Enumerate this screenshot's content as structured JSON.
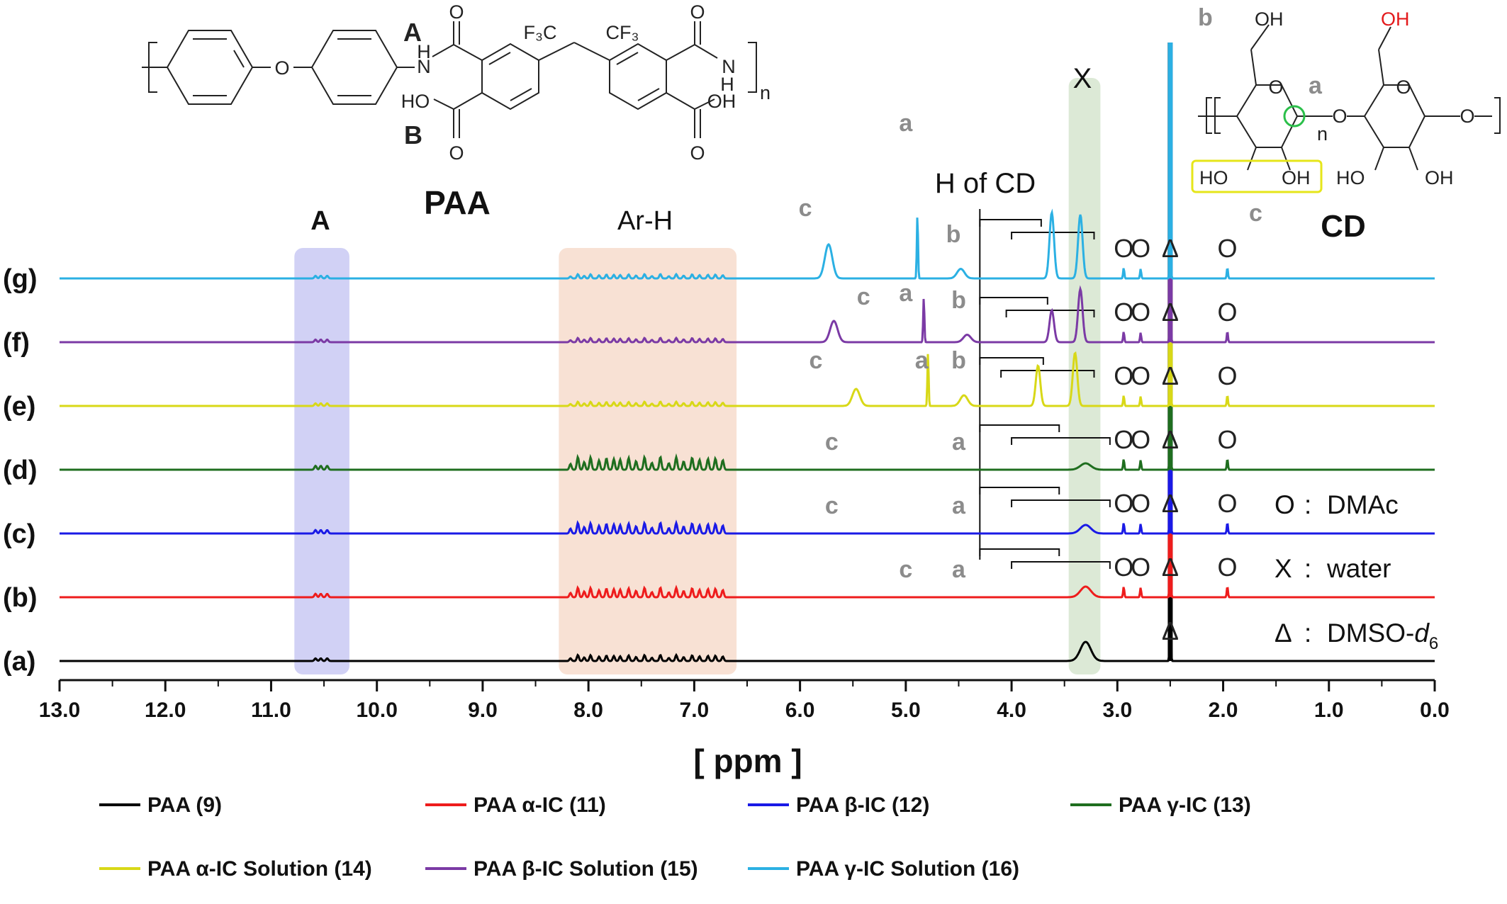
{
  "chart_data": {
    "type": "line",
    "xlabel": "[ ppm ]",
    "xlim": [
      13.0,
      0.0
    ],
    "x_reversed": true,
    "x_ticks": [
      "13.0",
      "12.0",
      "11.0",
      "10.0",
      "9.0",
      "8.0",
      "7.0",
      "6.0",
      "5.0",
      "4.0",
      "3.0",
      "2.0",
      "1.0",
      "0.0"
    ],
    "grid": false,
    "legend_position": "bottom",
    "series": [
      {
        "name": "PAA (9)",
        "row": "(a)",
        "color": "#000000",
        "peaks": [
          {
            "ppm": 10.53,
            "height": 0.12
          },
          {
            "ppm": 7.75,
            "height": 0.28
          },
          {
            "ppm": 3.3,
            "height": 0.9
          },
          {
            "ppm": 2.5,
            "height": 2.5
          }
        ]
      },
      {
        "name": "PAA α-IC (11)",
        "row": "(b)",
        "color": "#ee1c1c",
        "peaks": [
          {
            "ppm": 10.53,
            "height": 0.16
          },
          {
            "ppm": 7.75,
            "height": 0.45
          },
          {
            "ppm": 3.3,
            "height": 0.5
          },
          {
            "ppm": 2.94,
            "height": 0.5
          },
          {
            "ppm": 2.78,
            "height": 0.45
          },
          {
            "ppm": 2.5,
            "height": 2.5
          },
          {
            "ppm": 1.96,
            "height": 0.5
          }
        ]
      },
      {
        "name": "PAA β-IC (12)",
        "row": "(c)",
        "color": "#1a1ae6",
        "peaks": [
          {
            "ppm": 10.53,
            "height": 0.16
          },
          {
            "ppm": 7.75,
            "height": 0.5
          },
          {
            "ppm": 3.3,
            "height": 0.4
          },
          {
            "ppm": 2.94,
            "height": 0.5
          },
          {
            "ppm": 2.78,
            "height": 0.45
          },
          {
            "ppm": 2.5,
            "height": 2.5
          },
          {
            "ppm": 1.96,
            "height": 0.5
          }
        ]
      },
      {
        "name": "PAA γ-IC (13)",
        "row": "(d)",
        "color": "#1f6e1f",
        "peaks": [
          {
            "ppm": 10.53,
            "height": 0.18
          },
          {
            "ppm": 7.75,
            "height": 0.6
          },
          {
            "ppm": 3.3,
            "height": 0.3
          },
          {
            "ppm": 2.94,
            "height": 0.5
          },
          {
            "ppm": 2.78,
            "height": 0.45
          },
          {
            "ppm": 2.5,
            "height": 2.5
          },
          {
            "ppm": 1.96,
            "height": 0.5
          }
        ]
      },
      {
        "name": "PAA α-IC Solution (14)",
        "row": "(e)",
        "color": "#d8d817",
        "peaks": [
          {
            "ppm": 10.53,
            "height": 0.12
          },
          {
            "ppm": 7.75,
            "height": 0.2
          },
          {
            "ppm": 5.47,
            "height": 0.8
          },
          {
            "ppm": 4.79,
            "height": 2.5
          },
          {
            "ppm": 4.45,
            "height": 0.5
          },
          {
            "ppm": 3.75,
            "height": 1.9
          },
          {
            "ppm": 3.4,
            "height": 2.5
          },
          {
            "ppm": 2.94,
            "height": 0.5
          },
          {
            "ppm": 2.78,
            "height": 0.45
          },
          {
            "ppm": 2.5,
            "height": 2.5
          },
          {
            "ppm": 1.96,
            "height": 0.5
          }
        ]
      },
      {
        "name": "PAA β-IC Solution (15)",
        "row": "(f)",
        "color": "#7b3aa5",
        "peaks": [
          {
            "ppm": 10.53,
            "height": 0.12
          },
          {
            "ppm": 7.75,
            "height": 0.2
          },
          {
            "ppm": 5.68,
            "height": 1.0
          },
          {
            "ppm": 4.83,
            "height": 2.1
          },
          {
            "ppm": 4.42,
            "height": 0.35
          },
          {
            "ppm": 3.62,
            "height": 1.5
          },
          {
            "ppm": 3.35,
            "height": 2.5
          },
          {
            "ppm": 2.94,
            "height": 0.5
          },
          {
            "ppm": 2.78,
            "height": 0.45
          },
          {
            "ppm": 2.5,
            "height": 2.5
          },
          {
            "ppm": 1.96,
            "height": 0.5
          }
        ]
      },
      {
        "name": "PAA γ-IC Solution (16)",
        "row": "(g)",
        "color": "#2bb0e3",
        "peaks": [
          {
            "ppm": 10.53,
            "height": 0.12
          },
          {
            "ppm": 7.75,
            "height": 0.2
          },
          {
            "ppm": 5.73,
            "height": 1.6
          },
          {
            "ppm": 4.89,
            "height": 3.0
          },
          {
            "ppm": 4.48,
            "height": 0.45
          },
          {
            "ppm": 3.62,
            "height": 3.1
          },
          {
            "ppm": 3.35,
            "height": 3.0
          },
          {
            "ppm": 2.94,
            "height": 0.5
          },
          {
            "ppm": 2.78,
            "height": 0.45
          },
          {
            "ppm": 2.5,
            "height": 2.5
          },
          {
            "ppm": 1.96,
            "height": 0.5
          }
        ]
      }
    ],
    "highlight_regions": [
      {
        "label": "A",
        "from": 10.78,
        "to": 10.26,
        "color": "#c9c9f3"
      },
      {
        "label": "Ar-H",
        "from": 8.28,
        "to": 6.6,
        "color": "#f7dccd"
      },
      {
        "label": "X",
        "from": 3.46,
        "to": 3.16,
        "color": "#d6e5cf"
      }
    ],
    "annotations": {
      "region_A": "A",
      "aromatic": "Ar-H",
      "water_marker": "X",
      "cd_protons": "H of CD",
      "peak_labels": {
        "a": "a",
        "b": "b",
        "c": "c"
      },
      "dmac_marker": "O",
      "dmso_marker": "Δ"
    },
    "solvent_key": [
      {
        "marker": "O",
        "label": "DMAc"
      },
      {
        "marker": "X",
        "label": "water"
      },
      {
        "marker": "Δ",
        "label": "DMSO-",
        "sub": "6",
        "italic_part": "d"
      }
    ]
  },
  "structures": {
    "paa": {
      "title": "PAA",
      "label_a": "A",
      "label_b": "B",
      "group_cf3_left": "F₃C",
      "group_cf3_right": "CF₃",
      "amide_nh": "N",
      "amide_h": "H",
      "acid_ho": "HO",
      "acid_oh": "OH",
      "carbonyl_o": "O",
      "ether_o": "O",
      "repeat_n": "n"
    },
    "cd": {
      "title": "CD",
      "pos_a": "a",
      "pos_b": "b",
      "pos_c": "c",
      "oh": "OH",
      "ho": "HO",
      "ring_o": "O",
      "repeat_n": "n"
    }
  },
  "colors": {
    "highlight_hydroxyl": "#e31a1c",
    "circle_c1": "#2bbf4a",
    "box_oh": "#e6e61a"
  }
}
